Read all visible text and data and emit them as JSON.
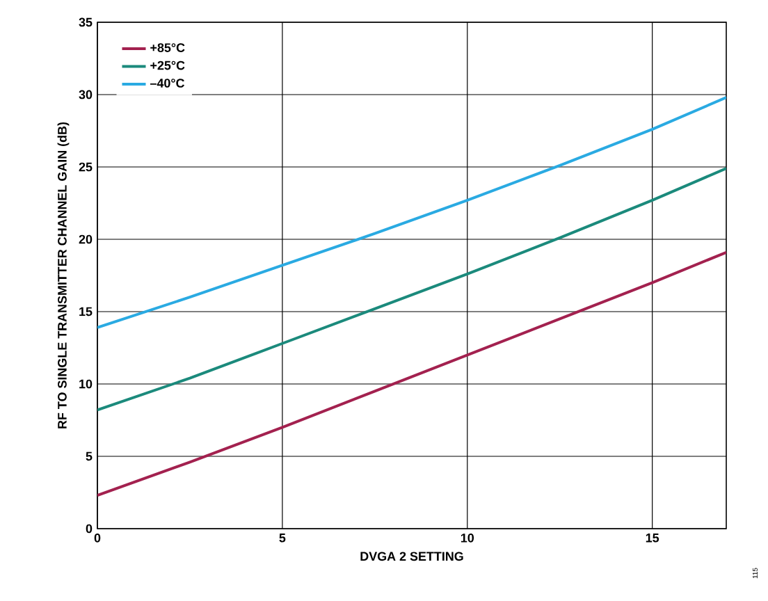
{
  "chart_data": {
    "type": "line",
    "xlabel": "DVGA 2 SETTING",
    "ylabel": "RF TO SINGLE TRANSMITTER CHANNEL GAIN (dB)",
    "x": [
      0,
      2.5,
      5,
      7.5,
      10,
      12.5,
      15,
      17
    ],
    "series": [
      {
        "name": "+85°C",
        "color": "#a3214f",
        "values": [
          2.3,
          4.6,
          7.0,
          9.5,
          12.0,
          14.5,
          17.0,
          19.1
        ]
      },
      {
        "name": "+25°C",
        "color": "#1b8a7c",
        "values": [
          8.2,
          10.4,
          12.8,
          15.2,
          17.6,
          20.1,
          22.7,
          24.9
        ]
      },
      {
        "name": "–40°C",
        "color": "#2aaae2",
        "values": [
          13.9,
          16.0,
          18.2,
          20.4,
          22.7,
          25.1,
          27.6,
          29.8
        ]
      }
    ],
    "xlim": [
      0,
      17
    ],
    "ylim": [
      0,
      35
    ],
    "xticks": [
      0,
      5,
      10,
      15
    ],
    "yticks": [
      0,
      5,
      10,
      15,
      20,
      25,
      30,
      35
    ],
    "grid": true,
    "legend": "top left",
    "line_style": "solid",
    "marker": "none",
    "annotations": [
      "115"
    ]
  }
}
